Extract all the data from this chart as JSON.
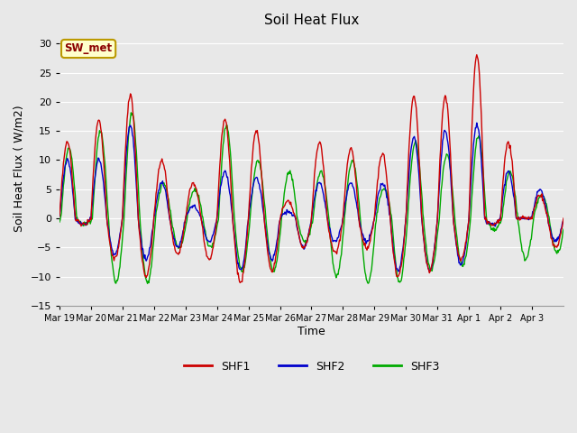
{
  "title": "Soil Heat Flux",
  "xlabel": "Time",
  "ylabel": "Soil Heat Flux ( W/m2)",
  "ylim": [
    -15,
    32
  ],
  "yticks": [
    -15,
    -10,
    -5,
    0,
    5,
    10,
    15,
    20,
    25,
    30
  ],
  "plot_bg_color": "#e8e8e8",
  "fig_bg_color": "#e8e8e8",
  "grid_color": "#ffffff",
  "line_colors": {
    "SHF1": "#cc0000",
    "SHF2": "#0000cc",
    "SHF3": "#00aa00"
  },
  "legend_label": "SW_met",
  "legend_box_color": "#ffffcc",
  "legend_box_edge": "#bb9900",
  "x_labels": [
    "Mar 19",
    "Mar 20",
    "Mar 21",
    "Mar 22",
    "Mar 23",
    "Mar 24",
    "Mar 25",
    "Mar 26",
    "Mar 27",
    "Mar 28",
    "Mar 29",
    "Mar 30",
    "Mar 31",
    "Apr 1",
    "Apr 2",
    "Apr 3"
  ],
  "days": 16,
  "half_period": 0.5
}
